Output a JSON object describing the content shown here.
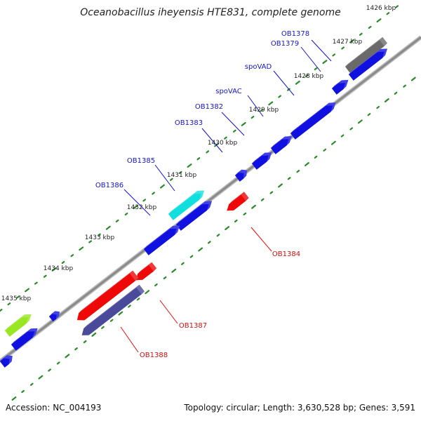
{
  "title": "Oceanobacillus iheyensis HTE831, complete genome",
  "footer": {
    "accession": "Accession: NC_004193",
    "summary": "Topology: circular; Length: 3,630,528 bp; Genes: 3,591"
  },
  "colors": {
    "forward_strand": "#1010e0",
    "reverse_strand": "#ee0808",
    "label_forward": "#1515c8",
    "label_reverse": "#cc1010",
    "backbone": "#8a8a8a",
    "ticks": "#2a8a2a",
    "cyan_gene": "#11dede",
    "gray_gene": "#6a6a6a",
    "green_gene": "#99e622",
    "slate_gene": "#4a4a9a"
  },
  "kbp_labels": [
    "1426 kbp",
    "1427 kbp",
    "1428 kbp",
    "1429 kbp",
    "1430 kbp",
    "1431 kbp",
    "1432 kbp",
    "1433 kbp",
    "1434 kbp",
    "1435 kbp"
  ],
  "gene_labels": [
    "OB1378",
    "OB1379",
    "spoVAD",
    "spoVAC",
    "OB1382",
    "OB1383",
    "OB1385",
    "OB1386",
    "OB1384",
    "OB1387",
    "OB1388"
  ]
}
